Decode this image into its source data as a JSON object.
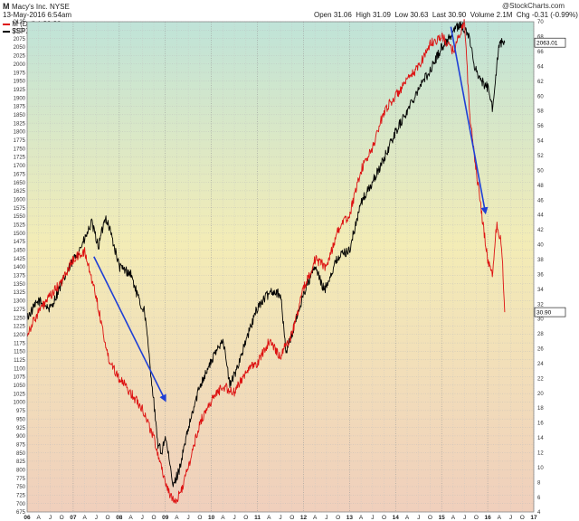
{
  "header": {
    "ticker": "M",
    "company": "Macy's Inc.  NYSE",
    "date": "13-May-2016 6:54am",
    "legend_m": "M (Daily) 30.90",
    "legend_spx": "$SPX 2063.01",
    "open_label": "Open",
    "open": "31.06",
    "high_label": "High",
    "high": "31.09",
    "low_label": "Low",
    "low": "30.63",
    "last_label": "Last",
    "last": "30.90",
    "volume_label": "Volume",
    "volume": "2.1M",
    "chg_label": "Chg",
    "chg": "-0.31 (-0.99%)",
    "watermark": "@StockCharts.com"
  },
  "colors": {
    "spx_line": "#000000",
    "m_line": "#dd1111",
    "arrows": "#1f3fd6",
    "bg_top": "#bfe3d8",
    "bg_mid": "#f3ecb6",
    "bg_bottom": "#f0cfbc"
  },
  "chart_data": {
    "type": "line",
    "x_tick_labels": [
      "06",
      "A",
      "J",
      "O",
      "07",
      "A",
      "J",
      "O",
      "08",
      "A",
      "J",
      "O",
      "09",
      "A",
      "J",
      "O",
      "10",
      "A",
      "J",
      "O",
      "11",
      "A",
      "J",
      "O",
      "12",
      "A",
      "J",
      "O",
      "13",
      "A",
      "J",
      "O",
      "14",
      "A",
      "J",
      "O",
      "15",
      "A",
      "J",
      "O",
      "16",
      "A",
      "J",
      "O",
      "17"
    ],
    "left_axis": {
      "series": "$SPX",
      "ylim": [
        675,
        2125
      ],
      "ticks": [
        675,
        700,
        725,
        750,
        775,
        800,
        825,
        850,
        875,
        900,
        925,
        950,
        975,
        1000,
        1025,
        1050,
        1075,
        1100,
        1125,
        1150,
        1175,
        1200,
        1225,
        1250,
        1275,
        1300,
        1325,
        1350,
        1375,
        1400,
        1425,
        1450,
        1475,
        1500,
        1525,
        1550,
        1575,
        1600,
        1625,
        1650,
        1675,
        1700,
        1725,
        1750,
        1775,
        1800,
        1825,
        1850,
        1875,
        1900,
        1925,
        1950,
        1975,
        2000,
        2025,
        2050,
        2075,
        2100,
        2125
      ]
    },
    "right_axis": {
      "series": "M",
      "ylim": [
        4,
        70
      ],
      "ticks": [
        4,
        6,
        8,
        10,
        12,
        14,
        16,
        18,
        20,
        22,
        24,
        26,
        28,
        30,
        32,
        34,
        36,
        38,
        40,
        42,
        44,
        46,
        48,
        50,
        52,
        54,
        56,
        58,
        60,
        62,
        64,
        66,
        68,
        70
      ],
      "last_value_tags": [
        "2063.01",
        "30.90"
      ]
    },
    "series": [
      {
        "name": "$SPX",
        "axis": "left",
        "color": "#000000",
        "x": [
          2006.0,
          2006.25,
          2006.5,
          2006.75,
          2007.0,
          2007.25,
          2007.4,
          2007.55,
          2007.7,
          2007.8,
          2008.0,
          2008.25,
          2008.45,
          2008.55,
          2008.75,
          2008.83,
          2008.92,
          2009.0,
          2009.17,
          2009.3,
          2009.5,
          2009.75,
          2010.0,
          2010.25,
          2010.4,
          2010.5,
          2010.75,
          2011.0,
          2011.3,
          2011.5,
          2011.62,
          2011.75,
          2012.0,
          2012.25,
          2012.45,
          2012.75,
          2013.0,
          2013.25,
          2013.5,
          2013.75,
          2014.0,
          2014.25,
          2014.5,
          2014.75,
          2015.0,
          2015.4,
          2015.6,
          2015.7,
          2015.85,
          2016.0,
          2016.1,
          2016.25,
          2016.37
        ],
        "values": [
          1250,
          1300,
          1275,
          1350,
          1420,
          1480,
          1530,
          1460,
          1550,
          1510,
          1400,
          1380,
          1290,
          1270,
          1000,
          880,
          850,
          900,
          750,
          800,
          920,
          1050,
          1120,
          1190,
          1050,
          1080,
          1180,
          1280,
          1330,
          1320,
          1150,
          1200,
          1320,
          1400,
          1330,
          1430,
          1450,
          1590,
          1650,
          1720,
          1800,
          1860,
          1930,
          1980,
          2050,
          2120,
          2080,
          2000,
          1950,
          1930,
          1870,
          2060,
          2063.01
        ]
      },
      {
        "name": "M",
        "axis": "right",
        "color": "#dd1111",
        "x": [
          2006.0,
          2006.25,
          2006.5,
          2006.75,
          2007.0,
          2007.25,
          2007.5,
          2007.75,
          2008.0,
          2008.25,
          2008.5,
          2008.75,
          2008.92,
          2009.0,
          2009.2,
          2009.35,
          2009.5,
          2009.75,
          2010.0,
          2010.25,
          2010.5,
          2010.75,
          2011.0,
          2011.25,
          2011.5,
          2011.75,
          2012.0,
          2012.25,
          2012.5,
          2012.75,
          2013.0,
          2013.25,
          2013.5,
          2013.75,
          2014.0,
          2014.25,
          2014.5,
          2014.75,
          2015.0,
          2015.25,
          2015.5,
          2015.6,
          2015.75,
          2015.85,
          2016.0,
          2016.1,
          2016.2,
          2016.3,
          2016.37
        ],
        "values": [
          28,
          31,
          33,
          35,
          38,
          39,
          33,
          25,
          22,
          20,
          18,
          14,
          10,
          8,
          5,
          7,
          10,
          16,
          19,
          21,
          20,
          23,
          24,
          27,
          25,
          28,
          34,
          38,
          37,
          42,
          44,
          50,
          53,
          58,
          60,
          62,
          64,
          67,
          68,
          66,
          70,
          58,
          50,
          45,
          38,
          36,
          43,
          40,
          30.9
        ]
      }
    ],
    "annotations": [
      {
        "type": "arrow",
        "color": "#1f3fd6",
        "from": {
          "x": 2007.45,
          "y_left": 1430
        },
        "to": {
          "x": 2009.0,
          "y_left": 1005
        }
      },
      {
        "type": "arrow",
        "color": "#1f3fd6",
        "from": {
          "x": 2015.2,
          "y_left": 2110
        },
        "to": {
          "x": 2015.95,
          "y_left": 1560
        }
      }
    ],
    "grid": true,
    "legend_placement": "top-left",
    "title": "Macy's Inc.  NYSE"
  }
}
